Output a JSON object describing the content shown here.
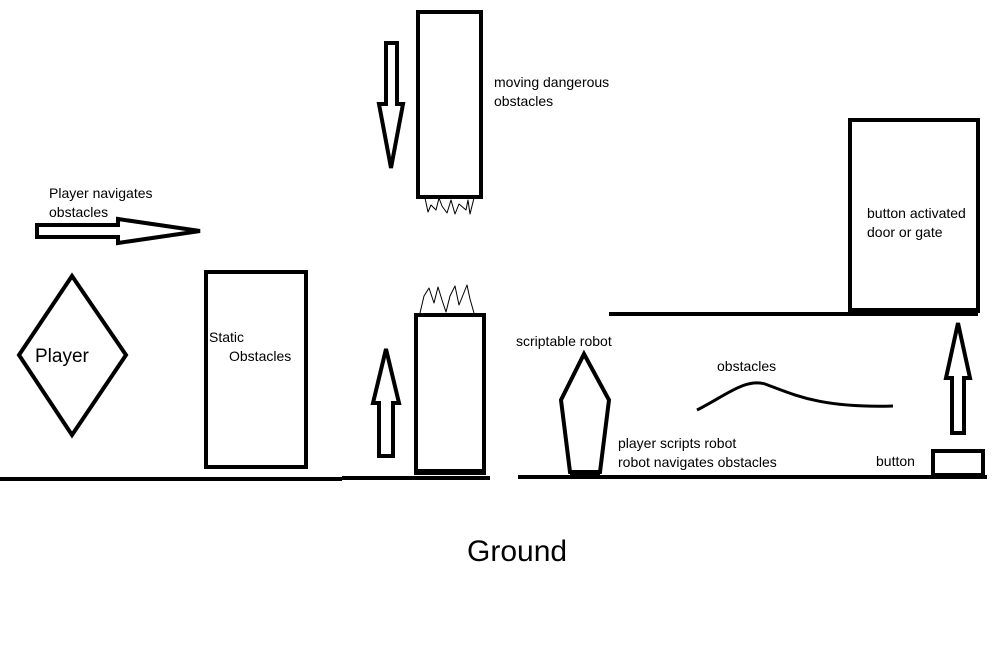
{
  "labels": {
    "player": "Player",
    "player_navigates_1": "Player navigates",
    "player_navigates_2": "obstacles",
    "static_1": "Static",
    "static_2": "Obstacles",
    "moving_1": "moving dangerous",
    "moving_2": "obstacles",
    "robot": "scriptable robot",
    "robot_note_1": "player scripts robot",
    "robot_note_2": "robot navigates obstacles",
    "obstacles": "obstacles",
    "door_1": "button activated",
    "door_2": "door or gate",
    "button": "button",
    "ground": "Ground"
  },
  "colors": {
    "ink": "#000000",
    "paper": "#ffffff"
  }
}
